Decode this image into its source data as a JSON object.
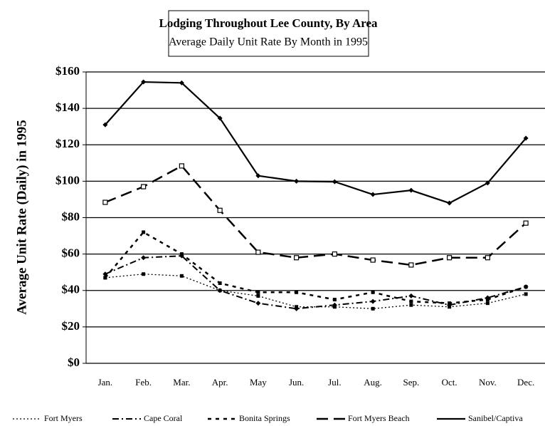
{
  "chart_data": {
    "type": "line",
    "title": "Lodging Throughout Lee County, By Area",
    "subtitle": "Average Daily Unit Rate By Month in 1995",
    "y_label": "Average Unit Rate (Daily) in 1995",
    "categories": [
      "Jan.",
      "Feb.",
      "Mar.",
      "Apr.",
      "May",
      "Jun.",
      "Jul.",
      "Aug.",
      "Sep.",
      "Oct.",
      "Nov.",
      "Dec."
    ],
    "series": [
      {
        "name": "Fort Myers",
        "color": "#000000",
        "values": [
          47,
          49,
          48,
          40,
          37,
          31,
          31,
          30,
          32,
          31,
          33,
          38
        ]
      },
      {
        "name": "Cape Coral",
        "color": "#000000",
        "values": [
          49,
          58,
          59,
          40,
          33,
          30,
          32,
          34,
          37,
          32,
          36,
          42
        ]
      },
      {
        "name": "Bonita Springs",
        "color": "#000000",
        "values": [
          47,
          72,
          60,
          44,
          39,
          39,
          35,
          39,
          34,
          33,
          35,
          42
        ]
      },
      {
        "name": "Fort Myers Beach",
        "color": "#000000",
        "values": [
          88.4,
          97,
          108.4,
          84,
          61,
          58,
          60,
          56.7,
          54,
          58,
          58,
          77
        ]
      },
      {
        "name": "Sanibel/Captiva",
        "color": "#000000",
        "values": [
          131,
          154.5,
          154,
          134.6,
          103,
          100,
          99.7,
          92.7,
          95,
          88,
          99,
          123.6
        ]
      }
    ],
    "ylim": [
      0,
      160
    ],
    "yticks": [
      {
        "value": 0,
        "label": "$0"
      },
      {
        "value": 20,
        "label": "$20"
      },
      {
        "value": 40,
        "label": "$40"
      },
      {
        "value": 60,
        "label": "$60"
      },
      {
        "value": 80,
        "label": "$80"
      },
      {
        "value": 100,
        "label": "$100"
      },
      {
        "value": 120,
        "label": "$120"
      },
      {
        "value": 140,
        "label": "$140"
      },
      {
        "value": 160,
        "label": "$160"
      }
    ],
    "grid": true,
    "legend": "bottom"
  }
}
